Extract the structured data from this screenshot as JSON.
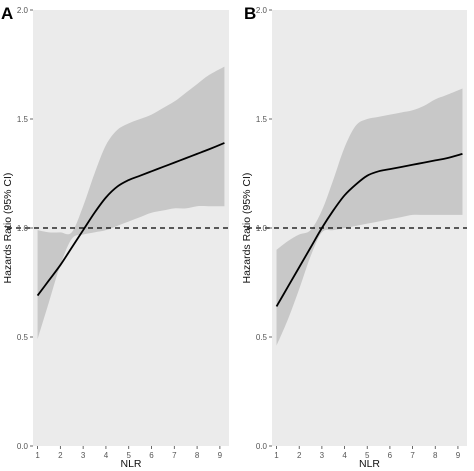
{
  "chart_data": [
    {
      "type": "line",
      "panel_label": "A",
      "xlabel": "NLR",
      "ylabel": "Hazards Ratio (95% CI)",
      "xlim": [
        0.8,
        9.4
      ],
      "ylim": [
        0,
        2
      ],
      "x_ticks": [
        1,
        2,
        3,
        4,
        5,
        6,
        7,
        8,
        9
      ],
      "y_ticks": [
        0.0,
        0.5,
        1.0,
        1.5,
        2.0
      ],
      "y_tick_labels": [
        "0.0",
        "0.5",
        "1.0",
        "1.5",
        "2.0"
      ],
      "reference_line": 1.0,
      "grid": false,
      "series": [
        {
          "x": [
            1,
            1.5,
            2,
            2.5,
            3,
            3.5,
            4,
            4.5,
            5,
            5.5,
            6,
            6.5,
            7,
            7.5,
            8,
            8.5,
            9.2
          ],
          "y": [
            0.69,
            0.76,
            0.83,
            0.91,
            0.99,
            1.07,
            1.14,
            1.19,
            1.22,
            1.24,
            1.26,
            1.28,
            1.3,
            1.32,
            1.34,
            1.36,
            1.39
          ],
          "lower": [
            0.49,
            0.66,
            0.83,
            0.95,
            0.97,
            0.98,
            0.99,
            1.01,
            1.03,
            1.05,
            1.07,
            1.08,
            1.09,
            1.09,
            1.1,
            1.1,
            1.1
          ],
          "upper": [
            0.99,
            0.98,
            0.98,
            0.98,
            1.1,
            1.25,
            1.38,
            1.45,
            1.48,
            1.5,
            1.52,
            1.55,
            1.58,
            1.62,
            1.66,
            1.7,
            1.74
          ]
        }
      ]
    },
    {
      "type": "line",
      "panel_label": "B",
      "xlabel": "NLR",
      "ylabel": "Hazards Ratio (95% CI)",
      "xlim": [
        0.8,
        9.4
      ],
      "ylim": [
        0,
        2
      ],
      "x_ticks": [
        1,
        2,
        3,
        4,
        5,
        6,
        7,
        8,
        9
      ],
      "y_ticks": [
        0.0,
        0.5,
        1.0,
        1.5,
        2.0
      ],
      "y_tick_labels": [
        "0.0",
        "0.5",
        "1.0",
        "1.5",
        "2.0"
      ],
      "reference_line": 1.0,
      "grid": false,
      "series": [
        {
          "x": [
            1,
            1.5,
            2,
            2.5,
            3,
            3.5,
            4,
            4.5,
            5,
            5.5,
            6,
            6.5,
            7,
            7.5,
            8,
            8.5,
            9.2
          ],
          "y": [
            0.64,
            0.73,
            0.82,
            0.91,
            1.0,
            1.08,
            1.15,
            1.2,
            1.24,
            1.26,
            1.27,
            1.28,
            1.29,
            1.3,
            1.31,
            1.32,
            1.34
          ],
          "lower": [
            0.46,
            0.58,
            0.72,
            0.87,
            0.98,
            0.99,
            1.0,
            1.01,
            1.02,
            1.03,
            1.04,
            1.05,
            1.06,
            1.06,
            1.06,
            1.06,
            1.06
          ],
          "upper": [
            0.9,
            0.94,
            0.97,
            0.99,
            1.08,
            1.22,
            1.37,
            1.47,
            1.5,
            1.51,
            1.52,
            1.53,
            1.54,
            1.56,
            1.59,
            1.61,
            1.64
          ]
        }
      ]
    }
  ]
}
